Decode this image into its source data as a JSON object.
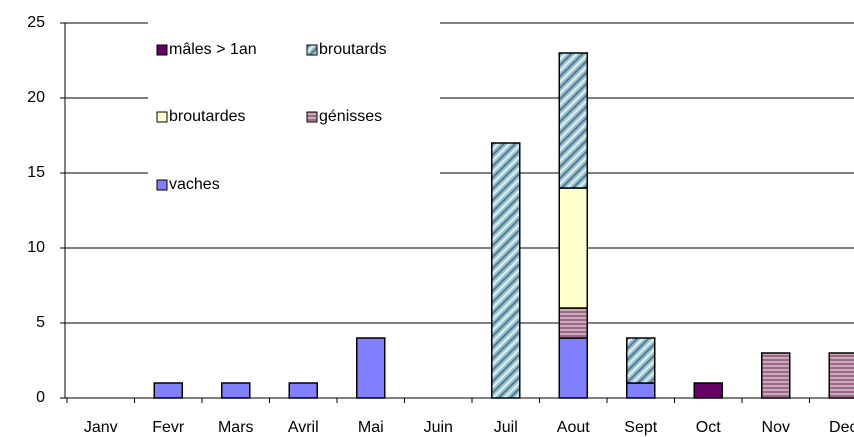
{
  "chart_data": {
    "type": "stacked_bar",
    "categories": [
      "Janv",
      "Fevr",
      "Mars",
      "Avril",
      "Mai",
      "Juin",
      "Juil",
      "Aout",
      "Sept",
      "Oct",
      "Nov",
      "Dec"
    ],
    "series": [
      {
        "name": "mâles > 1an",
        "color": "#660066",
        "values": [
          0,
          0,
          0,
          0,
          0,
          0,
          0,
          0,
          0,
          1,
          0,
          0
        ]
      },
      {
        "name": "broutards",
        "color": "#99c4cc",
        "hatch": "diagonal",
        "values": [
          0,
          0,
          0,
          0,
          0,
          0,
          17,
          9,
          3,
          0,
          0,
          0
        ]
      },
      {
        "name": "broutardes",
        "color": "#ffffcc",
        "values": [
          0,
          0,
          0,
          0,
          0,
          0,
          0,
          8,
          0,
          0,
          0,
          0
        ]
      },
      {
        "name": "génisses",
        "color": "#9b6b86",
        "hatch": "horizontal",
        "values": [
          0,
          0,
          0,
          0,
          0,
          0,
          0,
          2,
          0,
          0,
          3,
          3
        ]
      },
      {
        "name": "vaches",
        "color": "#8080ff",
        "values": [
          0,
          1,
          1,
          1,
          4,
          0,
          0,
          4,
          1,
          0,
          0,
          0
        ]
      }
    ],
    "ylim": [
      0,
      25
    ],
    "yticks": [
      0,
      5,
      10,
      15,
      20,
      25
    ],
    "grid": true
  }
}
